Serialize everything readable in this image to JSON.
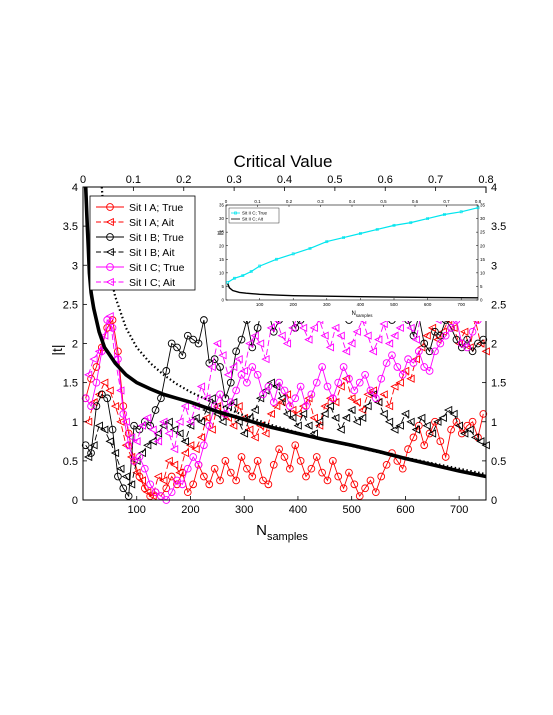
{
  "chart_data": {
    "type": "line",
    "title": "Critical Value",
    "xlabel": "N",
    "xlabel_sub": "samples",
    "ylabel": "|t|",
    "xlim": [
      0,
      750
    ],
    "ylim": [
      0,
      4
    ],
    "xticks": [
      100,
      200,
      300,
      400,
      500,
      600,
      700
    ],
    "yticks": [
      0,
      0.5,
      1,
      1.5,
      2,
      2.5,
      3,
      3.5,
      4
    ],
    "top_xlim": [
      0,
      0.8
    ],
    "top_xticks": [
      "0",
      "0.1",
      "0.2",
      "0.3",
      "0.4",
      "0.5",
      "0.6",
      "0.7",
      "0.8"
    ],
    "right_yticks": [
      "0",
      "0.5",
      "1",
      "1.5",
      "2",
      "2.5",
      "3",
      "3.5",
      "4"
    ],
    "legend_position": "top-left",
    "grid": false,
    "series": [
      {
        "name": "Sit I A; True",
        "color": "#ff0000",
        "marker": "circle",
        "dash": "solid",
        "x": [
          5,
          15,
          25,
          35,
          45,
          55,
          65,
          75,
          85,
          95,
          105,
          115,
          125,
          135,
          145,
          155,
          165,
          175,
          185,
          195,
          205,
          215,
          225,
          235,
          245,
          255,
          265,
          275,
          285,
          295,
          305,
          315,
          325,
          335,
          345,
          355,
          365,
          375,
          385,
          395,
          405,
          415,
          425,
          435,
          445,
          455,
          465,
          475,
          485,
          495,
          505,
          515,
          525,
          535,
          545,
          555,
          565,
          575,
          585,
          595,
          605,
          615,
          625,
          635,
          645,
          655,
          665,
          675,
          685,
          695,
          705,
          715,
          725,
          735,
          745
        ],
        "y": [
          1.3,
          1.55,
          1.7,
          1.95,
          2.2,
          2.3,
          1.9,
          1.2,
          0.85,
          0.5,
          0.3,
          0.15,
          0.05,
          0.1,
          0.05,
          0.15,
          0.3,
          0.2,
          0.35,
          0.1,
          0.2,
          0.45,
          0.3,
          0.2,
          0.4,
          0.25,
          0.5,
          0.35,
          0.25,
          0.55,
          0.4,
          0.3,
          0.5,
          0.25,
          0.2,
          0.45,
          0.65,
          0.55,
          0.4,
          0.7,
          0.5,
          0.3,
          0.4,
          0.55,
          0.35,
          0.25,
          0.5,
          0.3,
          0.15,
          0.35,
          0.2,
          0.05,
          0.15,
          0.25,
          0.1,
          0.3,
          0.45,
          0.6,
          0.5,
          0.4,
          0.65,
          0.8,
          0.95,
          0.7,
          0.85,
          1.0,
          0.75,
          0.55,
          0.9,
          1.0,
          0.85,
          0.95,
          1.0,
          0.8,
          1.1
        ]
      },
      {
        "name": "Sit I A; Ait",
        "color": "#ff0000",
        "marker": "triangle-left",
        "dash": "dashed",
        "x": [
          10,
          20,
          30,
          40,
          50,
          60,
          70,
          80,
          90,
          100,
          110,
          120,
          130,
          140,
          150,
          160,
          170,
          180,
          190,
          200,
          210,
          220,
          230,
          240,
          250,
          260,
          270,
          280,
          290,
          300,
          310,
          320,
          330,
          340,
          350,
          360,
          370,
          380,
          390,
          400,
          410,
          420,
          430,
          440,
          450,
          460,
          470,
          480,
          490,
          500,
          510,
          520,
          530,
          540,
          550,
          560,
          570,
          580,
          590,
          600,
          610,
          620,
          630,
          640,
          650,
          660,
          670,
          680,
          690,
          700,
          710,
          720,
          730,
          740,
          750
        ],
        "y": [
          1.0,
          1.25,
          1.35,
          1.5,
          1.4,
          1.2,
          1.0,
          0.7,
          0.55,
          0.35,
          0.25,
          0.1,
          0.05,
          0.3,
          0.25,
          0.5,
          0.45,
          0.35,
          0.6,
          0.7,
          0.65,
          0.8,
          1.05,
          0.9,
          1.2,
          1.1,
          1.05,
          0.95,
          1.2,
          1.05,
          0.9,
          0.8,
          0.95,
          0.85,
          1.1,
          1.2,
          1.25,
          1.35,
          1.15,
          1.1,
          1.2,
          1.3,
          1.05,
          0.95,
          1.2,
          1.3,
          1.25,
          1.45,
          1.55,
          1.3,
          1.25,
          1.15,
          1.35,
          1.4,
          1.25,
          1.35,
          1.2,
          1.45,
          1.5,
          1.65,
          1.55,
          1.8,
          1.95,
          2.1,
          2.2,
          2.05,
          2.15,
          2.3,
          2.2,
          2.0,
          2.15,
          1.95,
          2.3,
          2.0,
          1.9
        ]
      },
      {
        "name": "Sit I B; True",
        "color": "#000000",
        "marker": "circle",
        "dash": "solid",
        "x": [
          5,
          15,
          25,
          35,
          45,
          55,
          65,
          75,
          85,
          95,
          105,
          115,
          125,
          135,
          145,
          155,
          165,
          175,
          185,
          195,
          205,
          215,
          225,
          235,
          245,
          255,
          265,
          275,
          285,
          295,
          305,
          315,
          325,
          335,
          345,
          355,
          365,
          375,
          385,
          395,
          405,
          415,
          425,
          435,
          445,
          455,
          465,
          475,
          485,
          495,
          505,
          515,
          525,
          535,
          545,
          555,
          565,
          575,
          585,
          595,
          605,
          615,
          625,
          635,
          645,
          655,
          665,
          675,
          685,
          695,
          705,
          715,
          725,
          735,
          745
        ],
        "y": [
          0.7,
          0.6,
          1.2,
          1.35,
          1.3,
          0.9,
          0.3,
          0.15,
          0.05,
          0.95,
          0.9,
          1.0,
          0.95,
          1.15,
          1.3,
          1.65,
          2.0,
          1.95,
          1.85,
          2.1,
          2.05,
          2.0,
          2.3,
          1.75,
          1.8,
          1.7,
          1.3,
          1.5,
          1.9,
          2.05,
          2.3,
          1.95,
          2.2,
          2.5,
          2.4,
          2.15,
          2.3,
          2.45,
          2.4,
          2.2,
          2.3,
          2.5,
          2.6,
          2.45,
          2.35,
          2.5,
          2.7,
          2.6,
          2.4,
          2.3,
          2.5,
          2.6,
          2.65,
          2.55,
          2.5,
          2.6,
          2.4,
          2.3,
          2.45,
          2.6,
          2.3,
          2.1,
          2.35,
          2.0,
          1.9,
          2.15,
          2.1,
          2.3,
          2.2,
          2.05,
          1.95,
          2.05,
          1.9,
          2.0,
          2.05
        ]
      },
      {
        "name": "Sit I B; Ait",
        "color": "#000000",
        "marker": "triangle-left",
        "dash": "dashed",
        "x": [
          10,
          20,
          30,
          40,
          50,
          60,
          70,
          80,
          90,
          100,
          110,
          120,
          130,
          140,
          150,
          160,
          170,
          180,
          190,
          200,
          210,
          220,
          230,
          240,
          250,
          260,
          270,
          280,
          290,
          300,
          310,
          320,
          330,
          340,
          350,
          360,
          370,
          380,
          390,
          400,
          410,
          420,
          430,
          440,
          450,
          460,
          470,
          480,
          490,
          500,
          510,
          520,
          530,
          540,
          550,
          560,
          570,
          580,
          590,
          600,
          610,
          620,
          630,
          640,
          650,
          660,
          670,
          680,
          690,
          700,
          710,
          720,
          730,
          740,
          750
        ],
        "y": [
          0.55,
          0.7,
          0.95,
          0.9,
          0.75,
          0.6,
          0.4,
          0.3,
          0.2,
          0.5,
          0.6,
          0.7,
          0.75,
          0.85,
          0.95,
          1.0,
          0.9,
          0.85,
          0.75,
          0.95,
          1.05,
          1.0,
          1.15,
          1.3,
          1.1,
          1.0,
          1.2,
          1.25,
          1.0,
          0.85,
          1.05,
          1.15,
          1.3,
          1.4,
          1.5,
          1.45,
          1.3,
          1.1,
          1.05,
          0.95,
          1.1,
          0.95,
          0.85,
          1.0,
          1.1,
          1.2,
          1.05,
          0.9,
          1.05,
          1.15,
          1.0,
          1.05,
          1.2,
          1.35,
          1.25,
          1.1,
          1.0,
          0.9,
          0.95,
          1.1,
          1.0,
          0.9,
          1.05,
          0.95,
          0.85,
          1.0,
          1.05,
          1.15,
          1.1,
          0.95,
          0.85,
          0.9,
          0.8,
          0.75,
          0.7
        ]
      },
      {
        "name": "Sit I C; True",
        "color": "#ff00ff",
        "marker": "circle",
        "dash": "solid",
        "x": [
          5,
          15,
          25,
          35,
          45,
          55,
          65,
          75,
          85,
          95,
          105,
          115,
          125,
          135,
          145,
          155,
          165,
          175,
          185,
          195,
          205,
          215,
          225,
          235,
          245,
          255,
          265,
          275,
          285,
          295,
          305,
          315,
          325,
          335,
          345,
          355,
          365,
          375,
          385,
          395,
          405,
          415,
          425,
          435,
          445,
          455,
          465,
          475,
          485,
          495,
          505,
          515,
          525,
          535,
          545,
          555,
          565,
          575,
          585,
          595,
          605,
          615,
          625,
          635,
          645,
          655,
          665,
          675,
          685,
          695,
          705,
          715,
          725,
          735,
          745
        ],
        "y": [
          1.3,
          1.2,
          1.5,
          1.9,
          2.3,
          2.2,
          1.8,
          1.1,
          0.7,
          0.5,
          0.55,
          0.4,
          0.2,
          0.1,
          0.05,
          0.0,
          0.1,
          0.25,
          0.2,
          0.4,
          0.55,
          0.45,
          0.7,
          0.95,
          1.2,
          1.35,
          1.1,
          1.25,
          1.4,
          1.6,
          1.5,
          1.7,
          1.6,
          1.35,
          1.45,
          1.25,
          1.5,
          1.4,
          1.2,
          1.3,
          1.45,
          1.2,
          1.35,
          1.5,
          1.7,
          1.45,
          1.3,
          1.5,
          1.7,
          1.55,
          1.4,
          1.5,
          1.6,
          1.4,
          1.3,
          1.55,
          1.75,
          1.85,
          1.7,
          1.6,
          1.8,
          1.75,
          1.9,
          1.7,
          1.65,
          1.9,
          2.0,
          2.1,
          2.2,
          2.3,
          2.0,
          1.95,
          2.15,
          2.3,
          2.4
        ]
      },
      {
        "name": "Sit I C; Ait",
        "color": "#ff00ff",
        "marker": "triangle-left",
        "dash": "dashed",
        "x": [
          10,
          20,
          30,
          40,
          50,
          60,
          70,
          80,
          90,
          100,
          110,
          120,
          130,
          140,
          150,
          160,
          170,
          180,
          190,
          200,
          210,
          220,
          230,
          240,
          250,
          260,
          270,
          280,
          290,
          300,
          310,
          320,
          330,
          340,
          350,
          360,
          370,
          380,
          390,
          400,
          410,
          420,
          430,
          440,
          450,
          460,
          470,
          480,
          490,
          500,
          510,
          520,
          530,
          540,
          550,
          560,
          570,
          580,
          590,
          600,
          610,
          620,
          630,
          640,
          650,
          660,
          670,
          680,
          690,
          700,
          710,
          720,
          730,
          740,
          750
        ],
        "y": [
          1.6,
          1.8,
          1.9,
          2.1,
          2.35,
          1.8,
          1.4,
          1.0,
          0.8,
          0.75,
          0.95,
          1.05,
          0.9,
          0.75,
          1.0,
          0.85,
          0.65,
          1.0,
          1.2,
          1.0,
          1.2,
          1.45,
          1.3,
          1.7,
          2.0,
          1.85,
          1.6,
          1.7,
          1.8,
          1.65,
          2.0,
          2.1,
          2.0,
          1.8,
          2.2,
          2.3,
          2.1,
          2.0,
          2.2,
          2.35,
          2.2,
          2.05,
          2.2,
          2.3,
          2.1,
          1.95,
          2.2,
          2.1,
          1.9,
          2.0,
          2.15,
          2.3,
          2.1,
          1.9,
          2.05,
          2.25,
          2.0,
          2.1,
          2.2,
          2.35,
          2.2,
          2.05,
          2.4,
          2.6,
          2.5,
          2.3,
          2.45,
          2.6,
          2.7,
          2.5,
          2.65,
          2.8,
          2.9,
          3.0,
          3.2
        ]
      },
      {
        "name": "",
        "color": "#000000",
        "marker": "none",
        "dash": "solid",
        "width": "thick",
        "x": [
          5,
          8,
          10,
          12,
          15,
          20,
          25,
          30,
          40,
          50,
          60,
          80,
          100,
          125,
          150,
          175,
          200,
          250,
          300,
          350,
          400,
          450,
          500,
          550,
          600,
          650,
          700,
          750
        ],
        "y": [
          4.0,
          3.5,
          3.2,
          2.9,
          2.65,
          2.45,
          2.3,
          2.15,
          1.95,
          1.85,
          1.75,
          1.6,
          1.5,
          1.42,
          1.35,
          1.3,
          1.25,
          1.13,
          1.03,
          0.93,
          0.85,
          0.77,
          0.7,
          0.62,
          0.53,
          0.45,
          0.37,
          0.3
        ]
      },
      {
        "name": "",
        "color": "#000000",
        "marker": "none",
        "dash": "dotted",
        "width": "medium",
        "x": [
          35,
          40,
          50,
          60,
          80,
          100,
          125,
          150,
          175,
          200,
          250,
          300,
          350,
          400,
          450,
          500,
          550,
          600,
          650,
          700,
          750
        ],
        "y": [
          4.0,
          3.5,
          2.9,
          2.6,
          2.2,
          1.95,
          1.75,
          1.6,
          1.48,
          1.38,
          1.22,
          1.08,
          0.96,
          0.86,
          0.77,
          0.69,
          0.61,
          0.54,
          0.47,
          0.4,
          0.33
        ]
      }
    ],
    "inset": {
      "type": "line",
      "legend": [
        "Sit II C; True",
        "Sit II C; Ait"
      ],
      "legend_position": "top-left",
      "xlabel": "N",
      "xlabel_sub": "samples",
      "ylabel": "|t|",
      "xlim": [
        0,
        750
      ],
      "ylim": [
        0,
        35
      ],
      "xticks": [
        100,
        200,
        300,
        400,
        500,
        600,
        700
      ],
      "yticks": [
        0,
        5,
        10,
        15,
        20,
        25,
        30,
        35
      ],
      "top_xticks": [
        "0",
        "0.1",
        "0.2",
        "0.3",
        "0.4",
        "0.5",
        "0.6",
        "0.7",
        "0.8"
      ],
      "right_yticks": [
        "0",
        "5",
        "10",
        "15",
        "20",
        "25",
        "30",
        "35"
      ],
      "series": [
        {
          "name": "Sit II C; True",
          "color": "#00e5ee",
          "marker": "square",
          "x": [
            5,
            25,
            50,
            75,
            100,
            150,
            200,
            250,
            300,
            350,
            400,
            450,
            500,
            550,
            600,
            650,
            700,
            750
          ],
          "y": [
            6.5,
            8.0,
            9.0,
            10.5,
            12.5,
            15.0,
            17.0,
            19.0,
            21.5,
            23.0,
            24.5,
            26.0,
            27.5,
            28.5,
            30.0,
            31.5,
            32.5,
            34.0
          ]
        },
        {
          "name": "Sit II C; Ait",
          "color": "#000000",
          "marker": "none",
          "x": [
            5,
            10,
            20,
            40,
            60,
            100,
            150,
            200,
            300,
            400,
            500,
            600,
            700,
            750
          ],
          "y": [
            6.0,
            4.5,
            3.5,
            2.8,
            2.5,
            2.1,
            1.8,
            1.6,
            1.4,
            1.2,
            1.05,
            0.95,
            0.85,
            0.8
          ]
        }
      ]
    }
  }
}
